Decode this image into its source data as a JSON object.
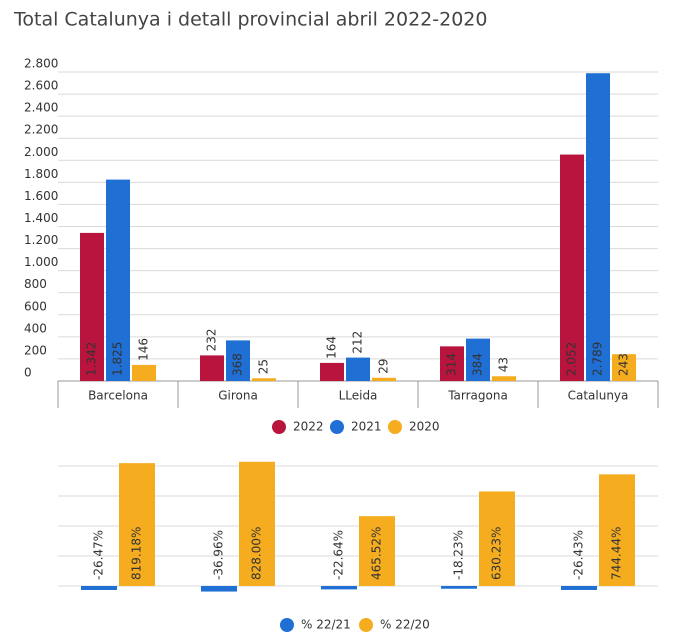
{
  "title": "Total Catalunya i detall provincial  abril 2022-2020",
  "chart_data": [
    {
      "type": "bar",
      "categories": [
        "Barcelona",
        "Girona",
        "LLeida",
        "Tarragona",
        "Catalunya"
      ],
      "series": [
        {
          "name": "2022",
          "color": "#b8143e",
          "values": [
            1342,
            232,
            164,
            314,
            2052
          ],
          "value_labels": [
            "1.342",
            "232",
            "164",
            "314",
            "2.052"
          ]
        },
        {
          "name": "2021",
          "color": "#1f6fd4",
          "values": [
            1825,
            368,
            212,
            384,
            2789
          ],
          "value_labels": [
            "1.825",
            "368",
            "212",
            "384",
            "2.789"
          ]
        },
        {
          "name": "2020",
          "color": "#f5ad1f",
          "values": [
            146,
            25,
            29,
            43,
            243
          ]
        }
      ],
      "ylim": [
        0,
        2800
      ],
      "yticks": [
        0,
        200,
        400,
        600,
        800,
        {
          "value": 1000,
          "label": "1.000"
        },
        {
          "value": 1200,
          "label": "1.200"
        },
        {
          "value": 1400,
          "label": "1.400"
        },
        {
          "value": 1600,
          "label": "1.600"
        },
        {
          "value": 1800,
          "label": "1.800"
        },
        {
          "value": 2000,
          "label": "2.000"
        },
        {
          "value": 2200,
          "label": "2.200"
        },
        {
          "value": 2400,
          "label": "2.400"
        },
        {
          "value": 2600,
          "label": "2.600"
        },
        {
          "value": 2800,
          "label": "2.800"
        }
      ],
      "grid": true,
      "tick_labels": true,
      "legend": "bottom"
    },
    {
      "type": "bar",
      "series": [
        {
          "name": "% 22/21",
          "color": "#1f6fd4",
          "values": [
            -26.47,
            -36.96,
            -22.64,
            -18.23,
            -26.43
          ],
          "value_labels": [
            "-26.47%",
            "-36.96%",
            "-22.64%",
            "-18.23%",
            "-26.43%"
          ]
        },
        {
          "name": "% 22/20",
          "color": "#f5ad1f",
          "values": [
            819.18,
            828.0,
            465.52,
            630.23,
            744.44
          ],
          "value_labels": [
            "819.18%",
            "828.00%",
            "465.52%",
            "630.23%",
            "744.44%"
          ]
        }
      ],
      "ylim": [
        -40,
        860
      ],
      "yticks": [
        0,
        200,
        400,
        600,
        800
      ],
      "grid": true,
      "tick_labels": false,
      "legend": "bottom"
    }
  ]
}
